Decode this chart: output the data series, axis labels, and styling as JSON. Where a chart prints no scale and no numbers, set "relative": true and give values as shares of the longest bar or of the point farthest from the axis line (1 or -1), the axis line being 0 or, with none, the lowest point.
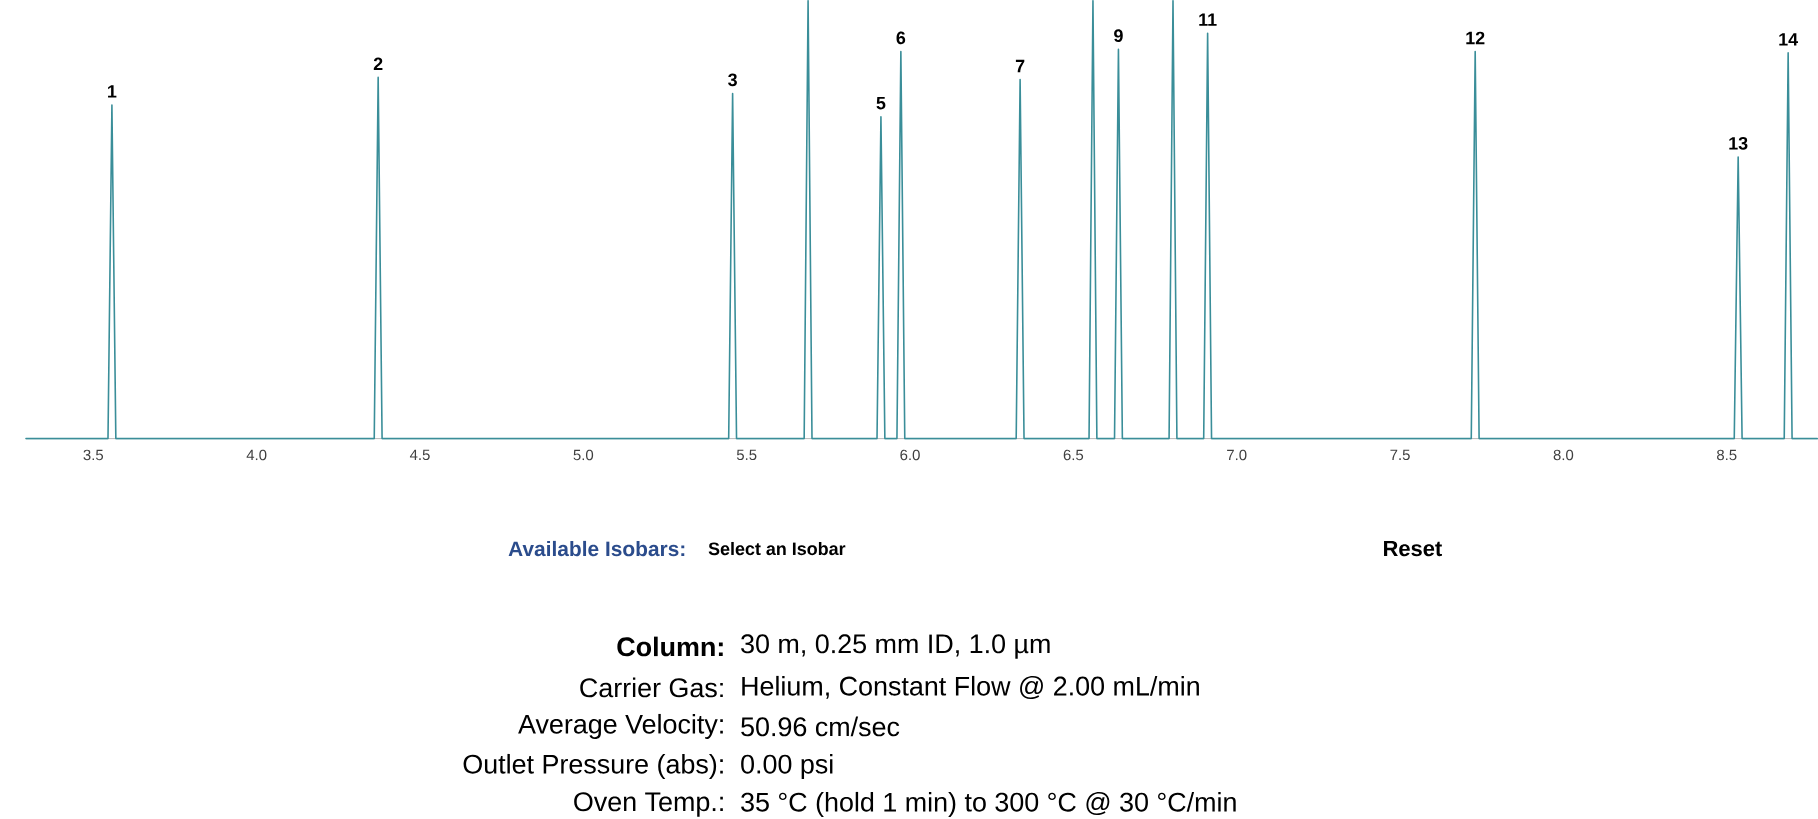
{
  "chart_data": {
    "type": "line",
    "relative": true,
    "color": "#3a8e99",
    "x": [
      3.294,
      3.545,
      3.557,
      3.569,
      4.36,
      4.372,
      4.384,
      5.445,
      5.457,
      5.469,
      5.676,
      5.688,
      5.7,
      5.899,
      5.911,
      5.923,
      5.96,
      5.972,
      5.984,
      6.325,
      6.337,
      6.349,
      6.548,
      6.56,
      6.572,
      6.626,
      6.638,
      6.65,
      6.793,
      6.805,
      6.817,
      6.899,
      6.911,
      6.923,
      7.718,
      7.73,
      7.742,
      8.523,
      8.535,
      8.547,
      8.676,
      8.688,
      8.7,
      8.777
    ],
    "values": [
      0,
      0,
      0.762,
      0,
      0,
      0.825,
      0,
      0,
      0.788,
      0,
      0,
      1,
      0,
      0,
      0.735,
      0,
      0,
      0.884,
      0,
      0,
      0.82,
      0,
      0,
      1,
      0,
      0,
      0.889,
      0,
      0,
      1,
      0,
      0,
      0.926,
      0,
      0,
      0.884,
      0,
      0,
      0.643,
      0,
      0,
      0.881,
      0,
      0
    ],
    "xlim": [
      3.294,
      8.777
    ],
    "xticks": [
      3.5,
      {
        "value": 4,
        "label": "4.0"
      },
      4.5,
      {
        "value": 5,
        "label": "5.0"
      },
      5.5,
      {
        "value": 6,
        "label": "6.0"
      },
      6.5,
      {
        "value": 7,
        "label": "7.0"
      },
      7.5,
      {
        "value": 8,
        "label": "8.0"
      },
      8.5
    ],
    "annotations": [
      {
        "text": "1",
        "x": 3.557,
        "y": 0.762
      },
      {
        "text": "2",
        "x": 4.372,
        "y": 0.825
      },
      {
        "text": "3",
        "x": 5.457,
        "y": 0.788
      },
      {
        "text": "5",
        "x": 5.911,
        "y": 0.735
      },
      {
        "text": "6",
        "x": 5.972,
        "y": 0.884
      },
      {
        "text": "7",
        "x": 6.337,
        "y": 0.82
      },
      {
        "text": "9",
        "x": 6.638,
        "y": 0.889
      },
      {
        "text": "11",
        "x": 6.911,
        "y": 0.926
      },
      {
        "text": "12",
        "x": 7.73,
        "y": 0.884
      },
      {
        "text": "13",
        "x": 8.535,
        "y": 0.643
      },
      {
        "text": "14",
        "x": 8.688,
        "y": 0.881
      },
      "Available Isobars:",
      "Select an Isobar",
      "Reset",
      "Column:",
      "30 m, 0.25 mm ID, 1.0 µm",
      "Carrier Gas:",
      "Helium, Constant Flow @ 2.00 mL/min",
      "Average Velocity:",
      "50.96 cm/sec",
      "Outlet Pressure (abs):",
      "0.00 psi",
      "Oven Temp.:",
      "35 °C (hold 1 min) to 300 °C @ 30 °C/min"
    ]
  }
}
